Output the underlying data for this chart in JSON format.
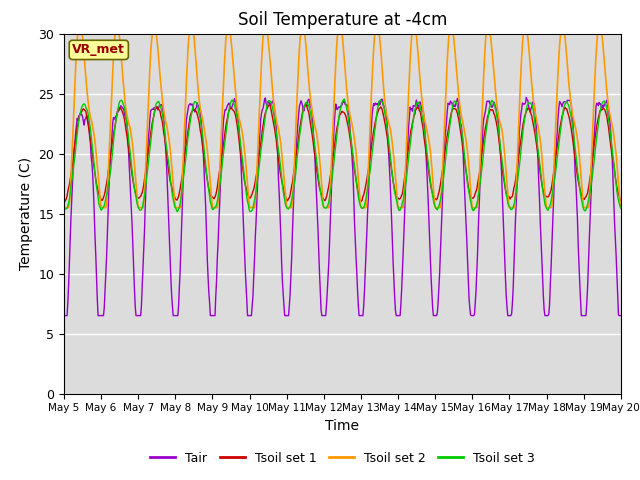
{
  "title": "Soil Temperature at -4cm",
  "xlabel": "Time",
  "ylabel": "Temperature (C)",
  "ylim": [
    0,
    30
  ],
  "yticks": [
    0,
    5,
    10,
    15,
    20,
    25,
    30
  ],
  "x_tick_labels": [
    "May 5",
    "May 6",
    "May 7",
    "May 8",
    "May 9",
    "May 10",
    "May 11",
    "May 12",
    "May 13",
    "May 14",
    "May 15",
    "May 16",
    "May 17",
    "May 18",
    "May 19",
    "May 20"
  ],
  "legend_labels": [
    "Tair",
    "Tsoil set 1",
    "Tsoil set 2",
    "Tsoil set 3"
  ],
  "line_colors": [
    "#9900cc",
    "#cc0000",
    "#ff9900",
    "#00cc00"
  ],
  "annotation_text": "VR_met",
  "annotation_color": "#990000",
  "annotation_bg": "#ffff99",
  "background_color": "#dcdcdc",
  "title_fontsize": 12,
  "axis_label_fontsize": 10
}
